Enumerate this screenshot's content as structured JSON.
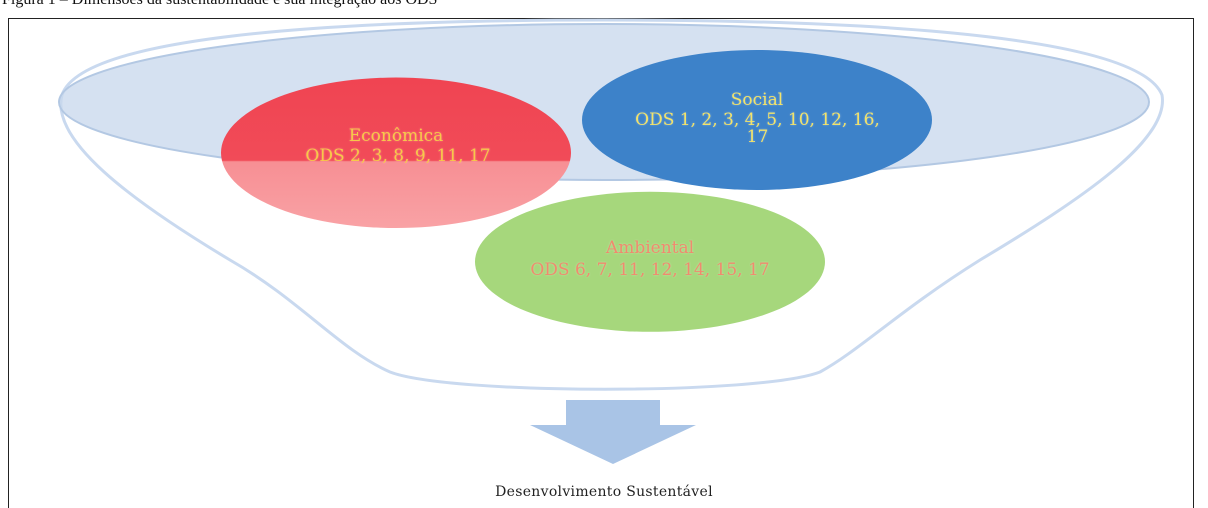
{
  "caption": "Figura 1 – Dimensões da sustentabilidade e sua integração aos ODS",
  "circles": {
    "economica": {
      "title": "Econômica",
      "ods": "ODS 2, 3, 8, 9, 11, 17",
      "color": "#f24a55",
      "text_color": "#f7c948"
    },
    "social": {
      "title": "Social",
      "ods": "ODS 1, 2, 3, 4, 5, 10, 12, 16, 17",
      "color": "#3d82c9",
      "text_color": "#f2e36a"
    },
    "ambiental": {
      "title": "Ambiental",
      "ods": "ODS 6, 7, 11, 12, 14, 15, 17",
      "color": "#a6d77c",
      "text_color": "#f08a6e"
    }
  },
  "result": "Desenvolvimento Sustentável",
  "icons": {
    "arrow": "down-arrow-icon",
    "funnel": "funnel-shape"
  },
  "colors": {
    "funnel_rim": "#c9d9ef",
    "funnel_top": "#bed3ea",
    "arrow": "#a9c4e6"
  }
}
